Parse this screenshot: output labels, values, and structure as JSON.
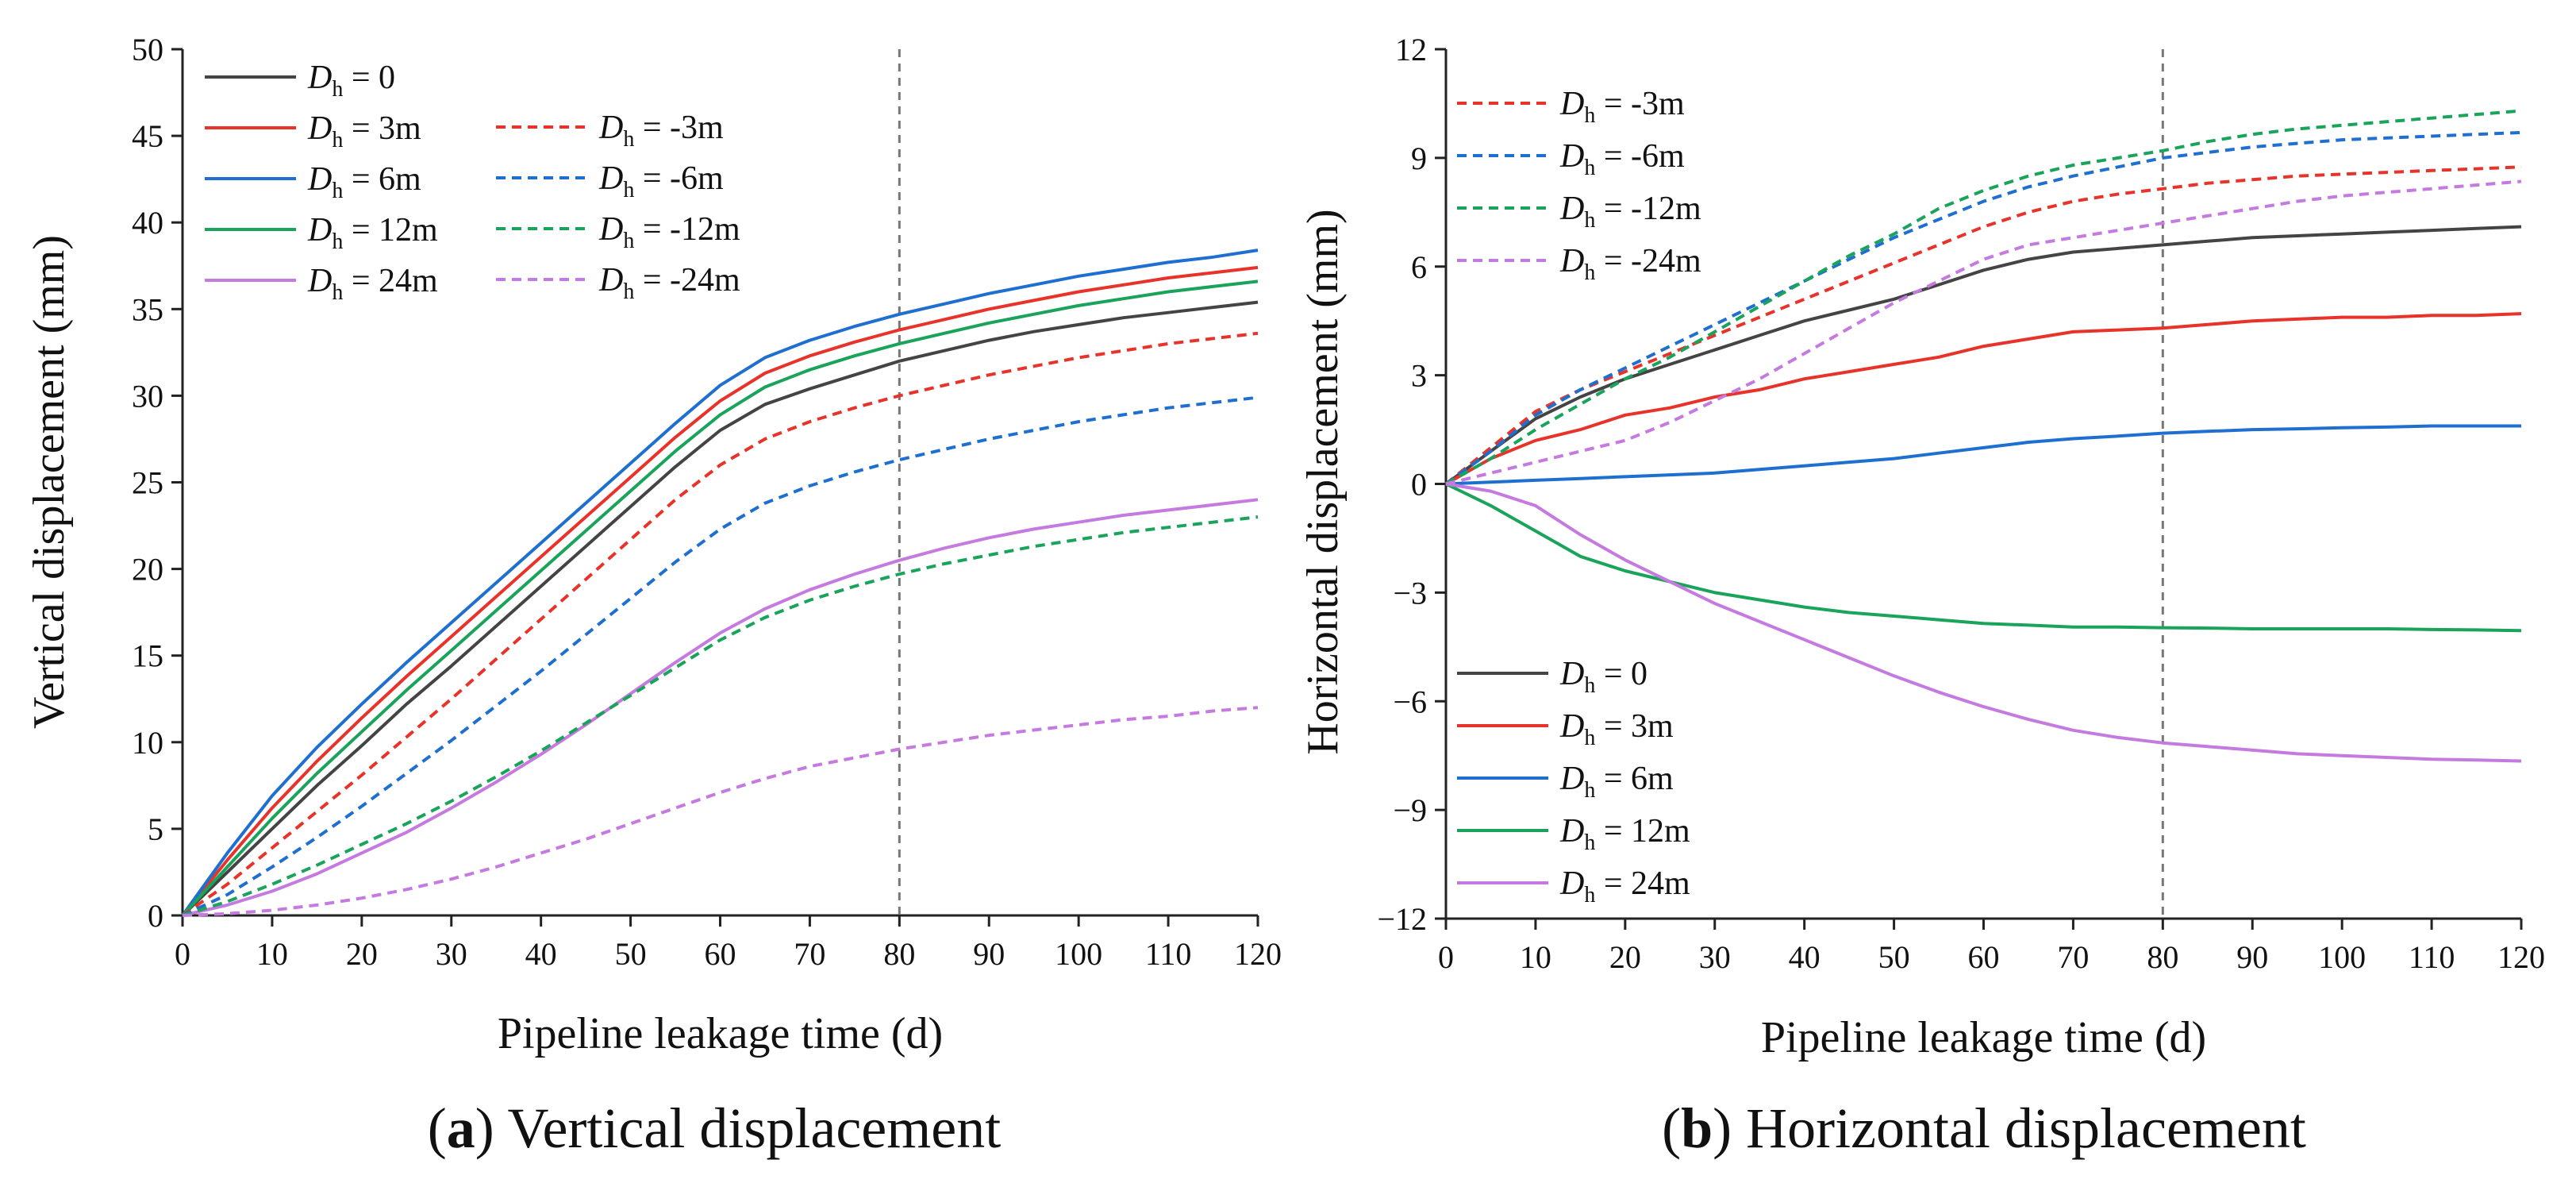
{
  "chart_data": [
    {
      "id": "a",
      "type": "line",
      "caption_letter": "a",
      "caption_text": " Vertical displacement",
      "xlabel": "Pipeline leakage time (d)",
      "ylabel": "Vertical displacement (mm)",
      "xlim": [
        0,
        120
      ],
      "ylim": [
        0,
        50
      ],
      "xticks": [
        0,
        10,
        20,
        30,
        40,
        50,
        60,
        70,
        80,
        90,
        100,
        110,
        120
      ],
      "yticks": [
        0,
        5,
        10,
        15,
        20,
        25,
        30,
        35,
        40,
        45,
        50
      ],
      "ytick_labels": [
        "0",
        "5",
        "10",
        "15",
        "20",
        "25",
        "30",
        "35",
        "40",
        "45",
        "50"
      ],
      "vline_x": 80,
      "x": [
        0,
        5,
        10,
        15,
        20,
        25,
        30,
        35,
        40,
        45,
        50,
        55,
        60,
        65,
        70,
        75,
        80,
        85,
        90,
        95,
        100,
        105,
        110,
        115,
        120
      ],
      "series": [
        {
          "name": "Dh = 0",
          "sub_text": "h",
          "value_text": "= 0",
          "style": "solid",
          "color": "#444444",
          "values": [
            0,
            2.5,
            5,
            7.5,
            9.8,
            12.2,
            14.4,
            16.7,
            19.0,
            21.3,
            23.6,
            25.9,
            28.0,
            29.5,
            30.4,
            31.2,
            32.0,
            32.6,
            33.2,
            33.7,
            34.1,
            34.5,
            34.8,
            35.1,
            35.4
          ]
        },
        {
          "name": "Dh = 3m",
          "sub_text": "h",
          "value_text": "= 3m",
          "style": "solid",
          "color": "#e8332a",
          "values": [
            0,
            3.2,
            6.2,
            8.9,
            11.4,
            13.8,
            16.1,
            18.4,
            20.7,
            23.0,
            25.3,
            27.6,
            29.7,
            31.3,
            32.3,
            33.1,
            33.8,
            34.4,
            35.0,
            35.5,
            36.0,
            36.4,
            36.8,
            37.1,
            37.4
          ]
        },
        {
          "name": "Dh = 6m",
          "sub_text": "h",
          "value_text": "= 6m",
          "style": "solid",
          "color": "#1f6fd1",
          "values": [
            0,
            3.6,
            6.9,
            9.7,
            12.2,
            14.6,
            16.9,
            19.2,
            21.5,
            23.8,
            26.1,
            28.4,
            30.6,
            32.2,
            33.2,
            34.0,
            34.7,
            35.3,
            35.9,
            36.4,
            36.9,
            37.3,
            37.7,
            38.0,
            38.4
          ]
        },
        {
          "name": "Dh = 12m",
          "sub_text": "h",
          "value_text": "= 12m",
          "style": "solid",
          "color": "#1aa35a",
          "values": [
            0,
            2.8,
            5.6,
            8.2,
            10.6,
            13.0,
            15.3,
            17.6,
            19.9,
            22.2,
            24.5,
            26.8,
            28.9,
            30.5,
            31.5,
            32.3,
            33.0,
            33.6,
            34.2,
            34.7,
            35.2,
            35.6,
            36.0,
            36.3,
            36.6
          ]
        },
        {
          "name": "Dh = 24m",
          "sub_text": "h",
          "value_text": "= 24m",
          "style": "solid",
          "color": "#c57ae0",
          "values": [
            0,
            0.6,
            1.4,
            2.4,
            3.6,
            4.8,
            6.2,
            7.7,
            9.3,
            11.0,
            12.8,
            14.6,
            16.3,
            17.7,
            18.8,
            19.7,
            20.5,
            21.2,
            21.8,
            22.3,
            22.7,
            23.1,
            23.4,
            23.7,
            24.0
          ]
        },
        {
          "name": "Dh = -3m",
          "sub_text": "h",
          "value_text": "= -3m",
          "style": "dashed",
          "color": "#e8332a",
          "values": [
            0,
            1.8,
            3.9,
            6.0,
            8.1,
            10.3,
            12.5,
            14.8,
            17.1,
            19.4,
            21.7,
            24.0,
            26.0,
            27.5,
            28.5,
            29.3,
            30.0,
            30.6,
            31.2,
            31.7,
            32.2,
            32.6,
            33.0,
            33.3,
            33.6
          ]
        },
        {
          "name": "Dh = -6m",
          "sub_text": "h",
          "value_text": "= -6m",
          "style": "dashed",
          "color": "#1f6fd1",
          "values": [
            0,
            1.2,
            2.8,
            4.5,
            6.3,
            8.2,
            10.1,
            12.1,
            14.1,
            16.2,
            18.3,
            20.4,
            22.3,
            23.8,
            24.8,
            25.6,
            26.3,
            26.9,
            27.5,
            28.0,
            28.5,
            28.9,
            29.3,
            29.6,
            29.9
          ]
        },
        {
          "name": "Dh = -12m",
          "sub_text": "h",
          "value_text": "= -12m",
          "style": "dashed",
          "color": "#1aa35a",
          "values": [
            0,
            0.8,
            1.8,
            2.9,
            4.1,
            5.3,
            6.6,
            8.0,
            9.5,
            11.1,
            12.7,
            14.3,
            15.9,
            17.2,
            18.2,
            19.0,
            19.7,
            20.3,
            20.8,
            21.3,
            21.7,
            22.1,
            22.4,
            22.7,
            23.0
          ]
        },
        {
          "name": "Dh = -24m",
          "sub_text": "h",
          "value_text": "= -24m",
          "style": "dashed",
          "color": "#c57ae0",
          "values": [
            0,
            0.1,
            0.3,
            0.6,
            1.0,
            1.5,
            2.1,
            2.8,
            3.6,
            4.4,
            5.3,
            6.2,
            7.1,
            7.9,
            8.6,
            9.1,
            9.6,
            10.0,
            10.4,
            10.7,
            11.0,
            11.3,
            11.5,
            11.8,
            12.0
          ]
        }
      ]
    },
    {
      "id": "b",
      "type": "line",
      "caption_letter": "b",
      "caption_text": " Horizontal displacement",
      "xlabel": "Pipeline leakage time (d)",
      "ylabel": "Horizontal displacement (mm)",
      "xlim": [
        0,
        120
      ],
      "ylim": [
        -12,
        12
      ],
      "xticks": [
        0,
        10,
        20,
        30,
        40,
        50,
        60,
        70,
        80,
        90,
        100,
        110,
        120
      ],
      "yticks": [
        -12,
        -9,
        -6,
        -3,
        0,
        3,
        6,
        9,
        12
      ],
      "ytick_labels": [
        "−12",
        "−9",
        "−6",
        "−3",
        "0",
        "3",
        "6",
        "9",
        "12"
      ],
      "vline_x": 80,
      "x": [
        0,
        5,
        10,
        15,
        20,
        25,
        30,
        35,
        40,
        45,
        50,
        55,
        60,
        65,
        70,
        75,
        80,
        85,
        90,
        95,
        100,
        105,
        110,
        115,
        120
      ],
      "series": [
        {
          "name": "Dh = 0",
          "sub_text": "h",
          "value_text": "= 0",
          "style": "solid",
          "color": "#444444",
          "values": [
            0,
            0.9,
            1.8,
            2.4,
            2.9,
            3.3,
            3.7,
            4.1,
            4.5,
            4.8,
            5.1,
            5.5,
            5.9,
            6.2,
            6.4,
            6.5,
            6.6,
            6.7,
            6.8,
            6.85,
            6.9,
            6.95,
            7.0,
            7.05,
            7.1
          ]
        },
        {
          "name": "Dh = 3m",
          "sub_text": "h",
          "value_text": "= 3m",
          "style": "solid",
          "color": "#e8332a",
          "values": [
            0,
            0.7,
            1.2,
            1.5,
            1.9,
            2.1,
            2.4,
            2.6,
            2.9,
            3.1,
            3.3,
            3.5,
            3.8,
            4.0,
            4.2,
            4.25,
            4.3,
            4.4,
            4.5,
            4.55,
            4.6,
            4.6,
            4.65,
            4.65,
            4.7
          ]
        },
        {
          "name": "Dh = 6m",
          "sub_text": "h",
          "value_text": "= 6m",
          "style": "solid",
          "color": "#1f6fd1",
          "values": [
            0,
            0.05,
            0.1,
            0.15,
            0.2,
            0.25,
            0.3,
            0.4,
            0.5,
            0.6,
            0.7,
            0.85,
            1.0,
            1.15,
            1.25,
            1.32,
            1.4,
            1.45,
            1.5,
            1.52,
            1.55,
            1.57,
            1.6,
            1.6,
            1.6
          ]
        },
        {
          "name": "Dh = 12m",
          "sub_text": "h",
          "value_text": "= 12m",
          "style": "solid",
          "color": "#1aa35a",
          "values": [
            0,
            -0.6,
            -1.3,
            -2.0,
            -2.4,
            -2.7,
            -3.0,
            -3.2,
            -3.4,
            -3.55,
            -3.65,
            -3.75,
            -3.85,
            -3.9,
            -3.95,
            -3.95,
            -3.97,
            -3.98,
            -4.0,
            -4.0,
            -4.0,
            -4.0,
            -4.02,
            -4.03,
            -4.05
          ]
        },
        {
          "name": "Dh = 24m",
          "sub_text": "h",
          "value_text": "= 24m",
          "style": "solid",
          "color": "#c57ae0",
          "values": [
            0,
            -0.2,
            -0.6,
            -1.4,
            -2.1,
            -2.7,
            -3.3,
            -3.8,
            -4.3,
            -4.8,
            -5.3,
            -5.75,
            -6.15,
            -6.5,
            -6.8,
            -7.0,
            -7.15,
            -7.25,
            -7.35,
            -7.45,
            -7.5,
            -7.55,
            -7.6,
            -7.62,
            -7.65
          ]
        },
        {
          "name": "Dh = -3m",
          "sub_text": "h",
          "value_text": "= -3m",
          "style": "dashed",
          "color": "#e8332a",
          "values": [
            0,
            1.0,
            2.0,
            2.6,
            3.1,
            3.6,
            4.1,
            4.6,
            5.1,
            5.6,
            6.1,
            6.6,
            7.1,
            7.5,
            7.8,
            8.0,
            8.15,
            8.3,
            8.4,
            8.5,
            8.55,
            8.6,
            8.65,
            8.7,
            8.75
          ]
        },
        {
          "name": "Dh = -6m",
          "sub_text": "h",
          "value_text": "= -6m",
          "style": "dashed",
          "color": "#1f6fd1",
          "values": [
            0,
            0.9,
            1.9,
            2.6,
            3.2,
            3.8,
            4.4,
            5.0,
            5.6,
            6.2,
            6.8,
            7.3,
            7.8,
            8.2,
            8.5,
            8.75,
            9.0,
            9.15,
            9.3,
            9.4,
            9.5,
            9.55,
            9.6,
            9.65,
            9.7
          ]
        },
        {
          "name": "Dh = -12m",
          "sub_text": "h",
          "value_text": "= -12m",
          "style": "dashed",
          "color": "#1aa35a",
          "values": [
            0,
            0.7,
            1.5,
            2.2,
            2.9,
            3.5,
            4.2,
            4.9,
            5.6,
            6.3,
            6.9,
            7.6,
            8.1,
            8.5,
            8.8,
            9.0,
            9.2,
            9.45,
            9.65,
            9.8,
            9.9,
            10.0,
            10.1,
            10.2,
            10.3
          ]
        },
        {
          "name": "Dh = -24m",
          "sub_text": "h",
          "value_text": "= -24m",
          "style": "dashed",
          "color": "#c57ae0",
          "values": [
            0,
            0.3,
            0.6,
            0.9,
            1.2,
            1.7,
            2.3,
            2.9,
            3.6,
            4.3,
            5.0,
            5.6,
            6.2,
            6.6,
            6.8,
            7.0,
            7.2,
            7.4,
            7.6,
            7.8,
            7.95,
            8.05,
            8.15,
            8.25,
            8.35
          ]
        }
      ]
    }
  ]
}
